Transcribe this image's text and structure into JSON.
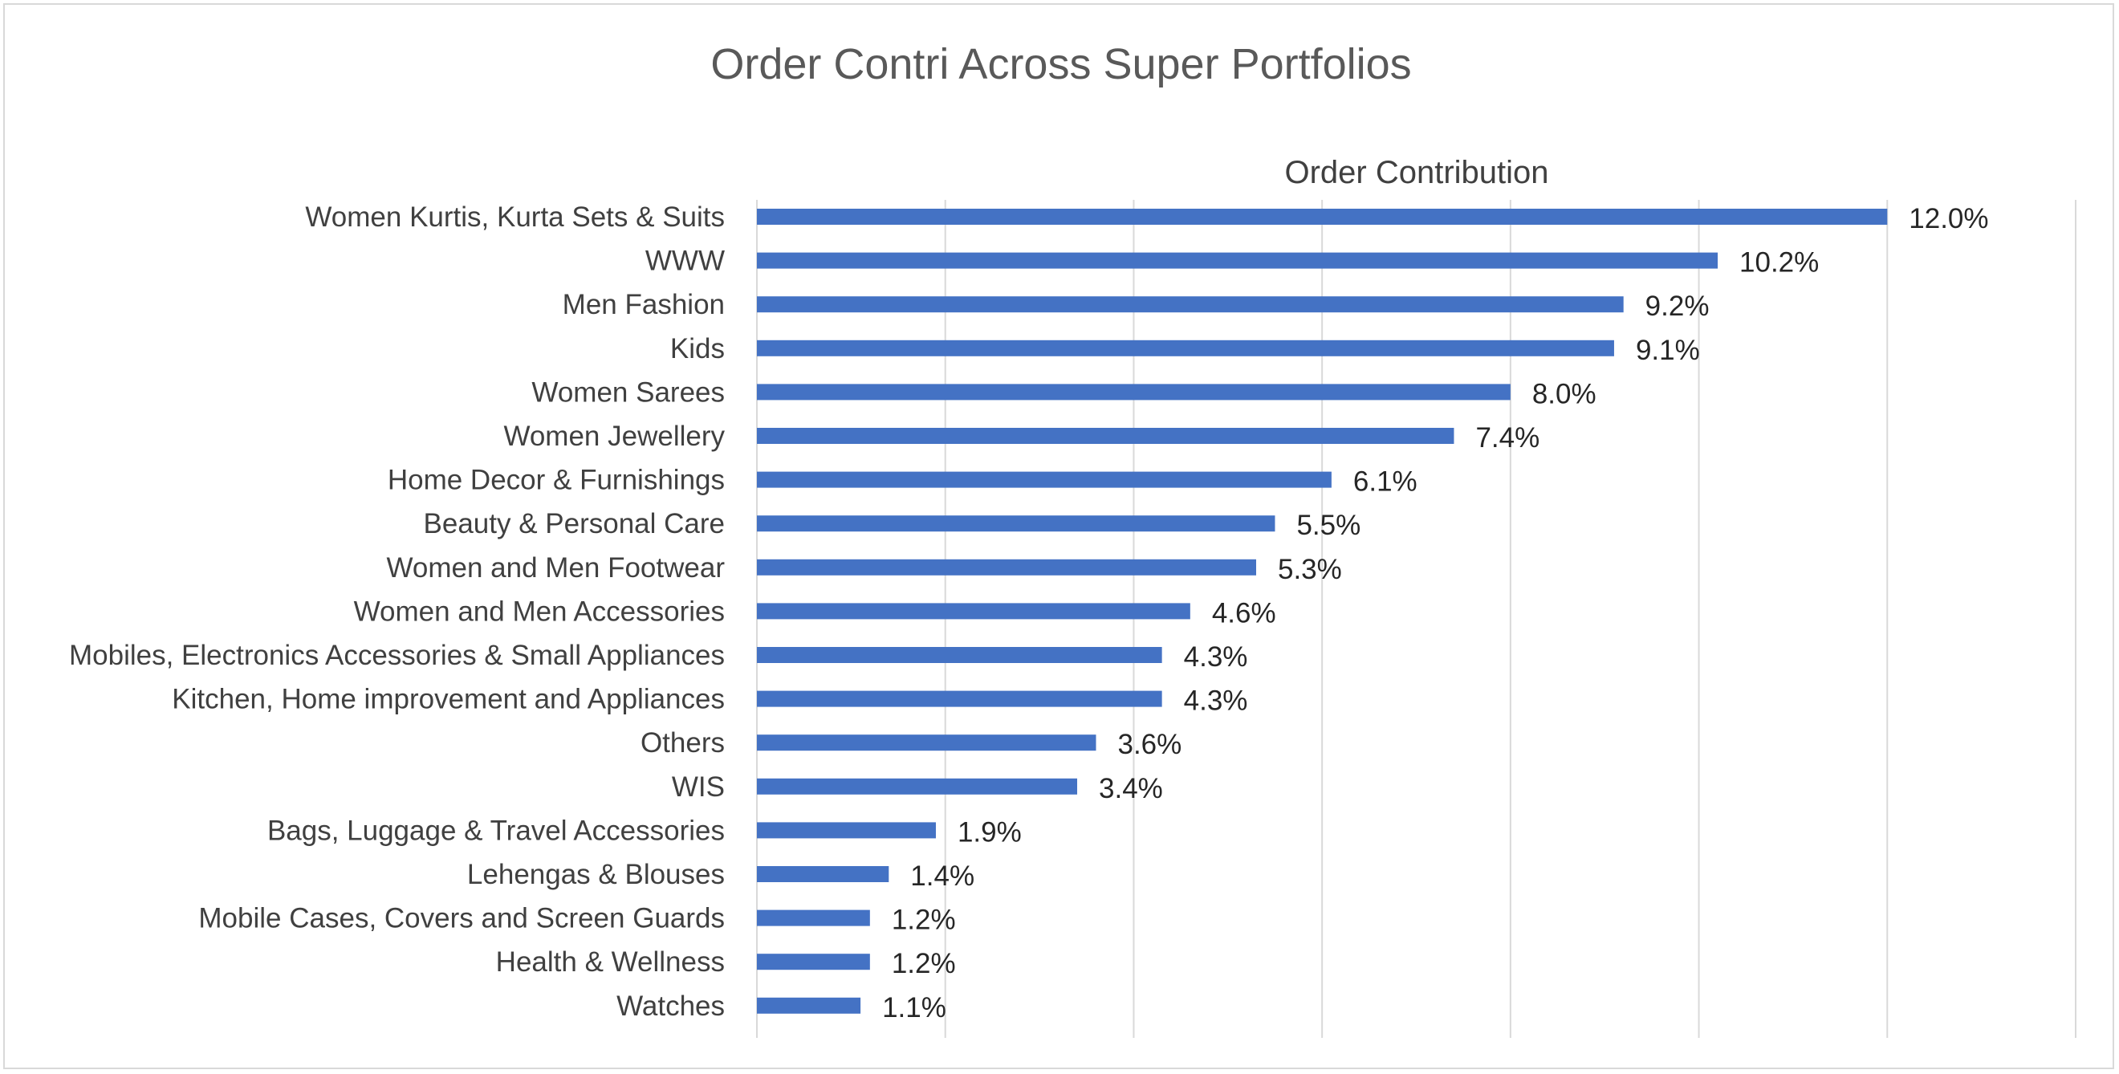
{
  "chart_data": {
    "type": "bar",
    "orientation": "horizontal",
    "title": "Order Contri Across Super Portfolios",
    "series": [
      {
        "name": "Order Contribution",
        "color": "#4472C4",
        "values": [
          12.0,
          10.2,
          9.2,
          9.1,
          8.0,
          7.4,
          6.1,
          5.5,
          5.3,
          4.6,
          4.3,
          4.3,
          3.6,
          3.4,
          1.9,
          1.4,
          1.2,
          1.2,
          1.1
        ],
        "labels": [
          "12.0%",
          "10.2%",
          "9.2%",
          "9.1%",
          "8.0%",
          "7.4%",
          "6.1%",
          "5.5%",
          "5.3%",
          "4.6%",
          "4.3%",
          "4.3%",
          "3.6%",
          "3.4%",
          "1.9%",
          "1.4%",
          "1.2%",
          "1.2%",
          "1.1%"
        ]
      }
    ],
    "categories": [
      "Women Kurtis, Kurta Sets & Suits",
      "WWW",
      "Men Fashion",
      "Kids",
      "Women Sarees",
      "Women Jewellery",
      "Home Decor & Furnishings",
      "Beauty & Personal Care",
      "Women and Men Footwear",
      "Women and Men Accessories",
      "Mobiles, Electronics Accessories & Small Appliances",
      "Kitchen, Home improvement and Appliances",
      "Others",
      "WIS",
      "Bags, Luggage & Travel Accessories",
      "Lehengas & Blouses",
      "Mobile Cases, Covers and Screen Guards",
      "Health & Wellness",
      "Watches"
    ],
    "xlim": [
      0,
      14
    ],
    "x_unit": "%",
    "grid": true,
    "tick_labels_visible": false,
    "legend": "none"
  },
  "colors": {
    "bar": "#4472C4",
    "grid": "#d9d9d9",
    "title": "#595959",
    "text": "#404040",
    "frame": "#d9d9d9"
  }
}
